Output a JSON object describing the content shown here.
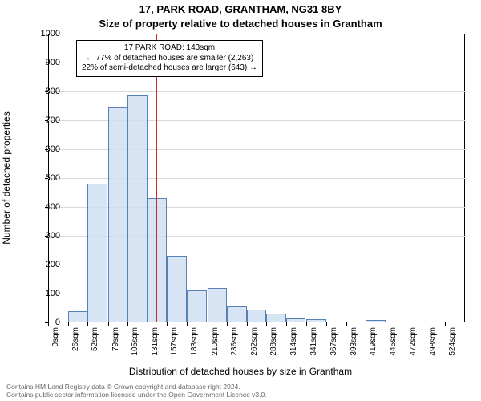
{
  "header": {
    "address_line": "17, PARK ROAD, GRANTHAM, NG31 8BY",
    "subtitle": "Size of property relative to detached houses in Grantham"
  },
  "chart": {
    "type": "histogram",
    "ylabel": "Number of detached properties",
    "xlabel": "Distribution of detached houses by size in Grantham",
    "ylim": [
      0,
      1000
    ],
    "ytick_step": 100,
    "background_color": "#ffffff",
    "grid_color": "#d9d9d9",
    "axis_color": "#000000",
    "bar_fill": "#cfe0f3",
    "bar_edge": "#3a6aa6",
    "bar_opacity": 0.85,
    "ref_line_color": "#d62728",
    "ref_line_x": 143,
    "x_bins": [
      {
        "x": 0,
        "label": "0sqm",
        "value": 0
      },
      {
        "x": 26,
        "label": "26sqm",
        "value": 40
      },
      {
        "x": 52,
        "label": "52sqm",
        "value": 480
      },
      {
        "x": 79,
        "label": "79sqm",
        "value": 745
      },
      {
        "x": 105,
        "label": "105sqm",
        "value": 785
      },
      {
        "x": 131,
        "label": "131sqm",
        "value": 430
      },
      {
        "x": 157,
        "label": "157sqm",
        "value": 230
      },
      {
        "x": 183,
        "label": "183sqm",
        "value": 110
      },
      {
        "x": 210,
        "label": "210sqm",
        "value": 120
      },
      {
        "x": 236,
        "label": "236sqm",
        "value": 55
      },
      {
        "x": 262,
        "label": "262sqm",
        "value": 45
      },
      {
        "x": 288,
        "label": "288sqm",
        "value": 30
      },
      {
        "x": 314,
        "label": "314sqm",
        "value": 15
      },
      {
        "x": 341,
        "label": "341sqm",
        "value": 10
      },
      {
        "x": 367,
        "label": "367sqm",
        "value": 0
      },
      {
        "x": 393,
        "label": "393sqm",
        "value": 0
      },
      {
        "x": 419,
        "label": "419sqm",
        "value": 8
      },
      {
        "x": 445,
        "label": "445sqm",
        "value": 0
      },
      {
        "x": 472,
        "label": "472sqm",
        "value": 0
      },
      {
        "x": 498,
        "label": "498sqm",
        "value": 0
      },
      {
        "x": 524,
        "label": "524sqm",
        "value": 0
      }
    ],
    "x_range": [
      0,
      550
    ],
    "bar_bin_width": 26,
    "annotation": {
      "line1": "17 PARK ROAD: 143sqm",
      "line2": "← 77% of detached houses are smaller (2,263)",
      "line3": "22% of semi-detached houses are larger (643) →",
      "border_color": "#000000",
      "bg_color": "#ffffff",
      "fontsize": 10
    },
    "tick_fontsize": 11,
    "xtick_fontsize": 10,
    "label_fontsize": 12
  },
  "footer": {
    "line1": "Contains HM Land Registry data © Crown copyright and database right 2024.",
    "line2": "Contains public sector information licensed under the Open Government Licence v3.0.",
    "color": "#666666",
    "fontsize": 8.5
  }
}
